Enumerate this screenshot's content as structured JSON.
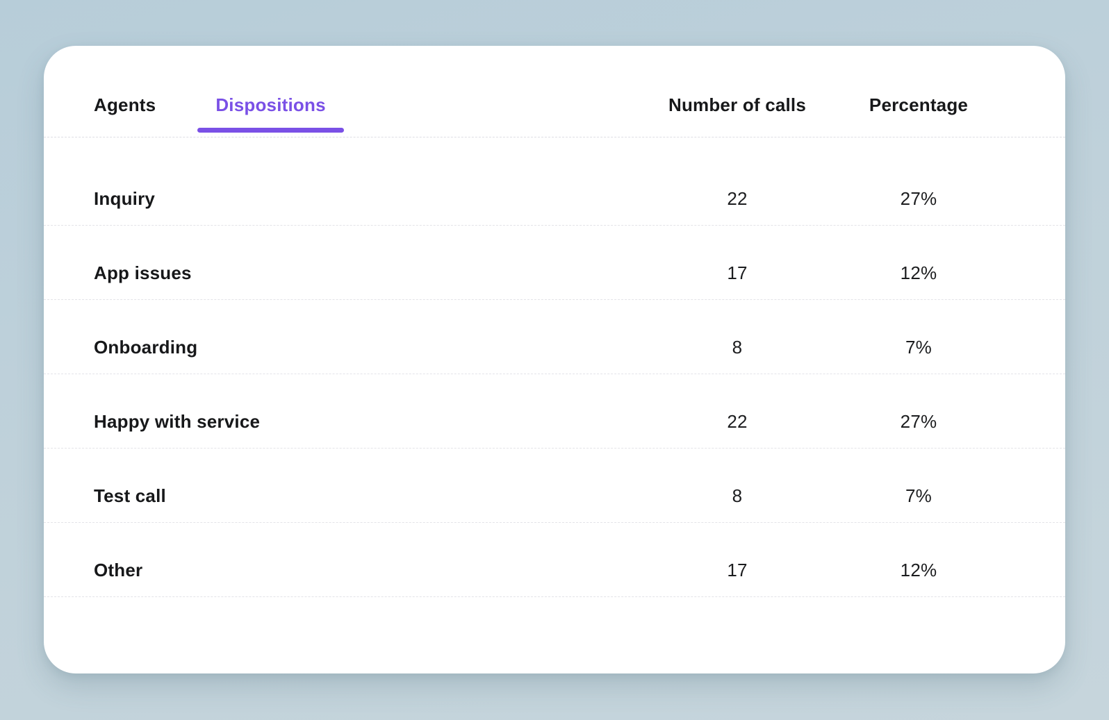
{
  "tabs": {
    "agents": {
      "label": "Agents",
      "active": false
    },
    "dispositions": {
      "label": "Dispositions",
      "active": true
    }
  },
  "columns": {
    "calls": "Number of calls",
    "percentage": "Percentage"
  },
  "rows": [
    {
      "label": "Inquiry",
      "calls": "22",
      "percentage": "27%"
    },
    {
      "label": "App issues",
      "calls": "17",
      "percentage": "12%"
    },
    {
      "label": "Onboarding",
      "calls": "8",
      "percentage": "7%"
    },
    {
      "label": "Happy with service",
      "calls": "22",
      "percentage": "27%"
    },
    {
      "label": "Test call",
      "calls": "8",
      "percentage": "7%"
    },
    {
      "label": "Other",
      "calls": "17",
      "percentage": "12%"
    }
  ],
  "colors": {
    "accent": "#7a50e6",
    "text": "#17181a",
    "card": "#ffffff",
    "background": "#bfd1da",
    "divider": "#e3e3e8"
  }
}
